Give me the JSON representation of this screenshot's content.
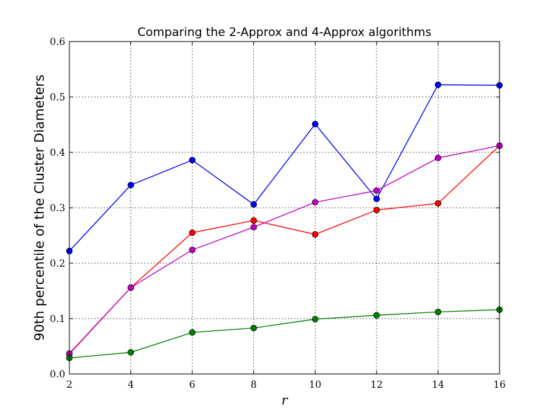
{
  "chart_data": {
    "type": "line",
    "title": "Comparing the 2-Approx and 4-Approx algorithms",
    "xlabel": "r",
    "ylabel": "90th percentile of the Cluster Diameters",
    "xlim": [
      2,
      16
    ],
    "ylim": [
      0.0,
      0.6
    ],
    "grid": true,
    "x_ticks": [
      "2",
      "4",
      "6",
      "8",
      "10",
      "12",
      "14",
      "16"
    ],
    "y_ticks": [
      "0.0",
      "0.1",
      "0.2",
      "0.3",
      "0.4",
      "0.5",
      "0.6"
    ],
    "x": [
      2,
      4,
      6,
      8,
      10,
      12,
      14,
      16
    ],
    "series": [
      {
        "color": "#0000ff",
        "values": [
          0.222,
          0.341,
          0.386,
          0.306,
          0.451,
          0.316,
          0.522,
          0.521
        ]
      },
      {
        "color": "#ff0000",
        "values": [
          0.036,
          0.156,
          0.255,
          0.277,
          0.252,
          0.296,
          0.308,
          0.412
        ]
      },
      {
        "color": "#bf00bf",
        "values": [
          0.037,
          0.156,
          0.224,
          0.265,
          0.31,
          0.331,
          0.39,
          0.412
        ]
      },
      {
        "color": "#008000",
        "values": [
          0.029,
          0.039,
          0.075,
          0.083,
          0.099,
          0.106,
          0.112,
          0.116
        ]
      }
    ]
  }
}
